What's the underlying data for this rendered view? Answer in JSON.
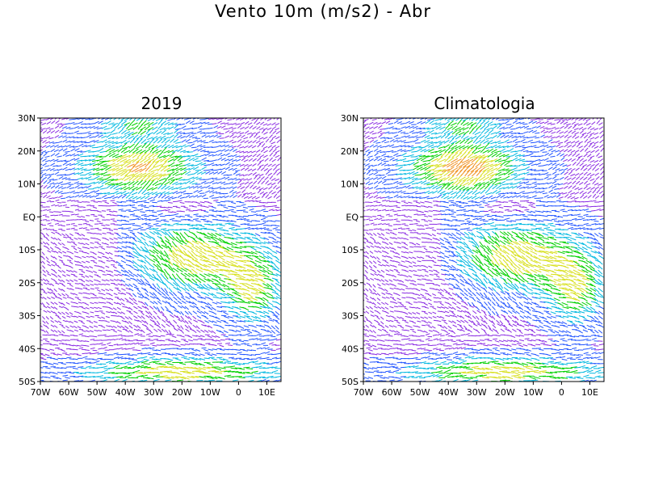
{
  "title": "Vento 10m (m/s2) - Abr",
  "panels": [
    {
      "title": "2019"
    },
    {
      "title": "Climatologia"
    }
  ],
  "axes": {
    "lon_labels": [
      "70W",
      "60W",
      "50W",
      "40W",
      "30W",
      "20W",
      "10W",
      "0",
      "10E"
    ],
    "lat_labels": [
      "30N",
      "20N",
      "10N",
      "EQ",
      "10S",
      "20S",
      "30S",
      "40S",
      "50S"
    ],
    "lon_range": [
      -70,
      15
    ],
    "lat_range": [
      -50,
      30
    ]
  },
  "color_scale": [
    "#8a2be2",
    "#2255ff",
    "#00b8e0",
    "#00d000",
    "#d8e020",
    "#f09020",
    "#ff3030"
  ]
}
